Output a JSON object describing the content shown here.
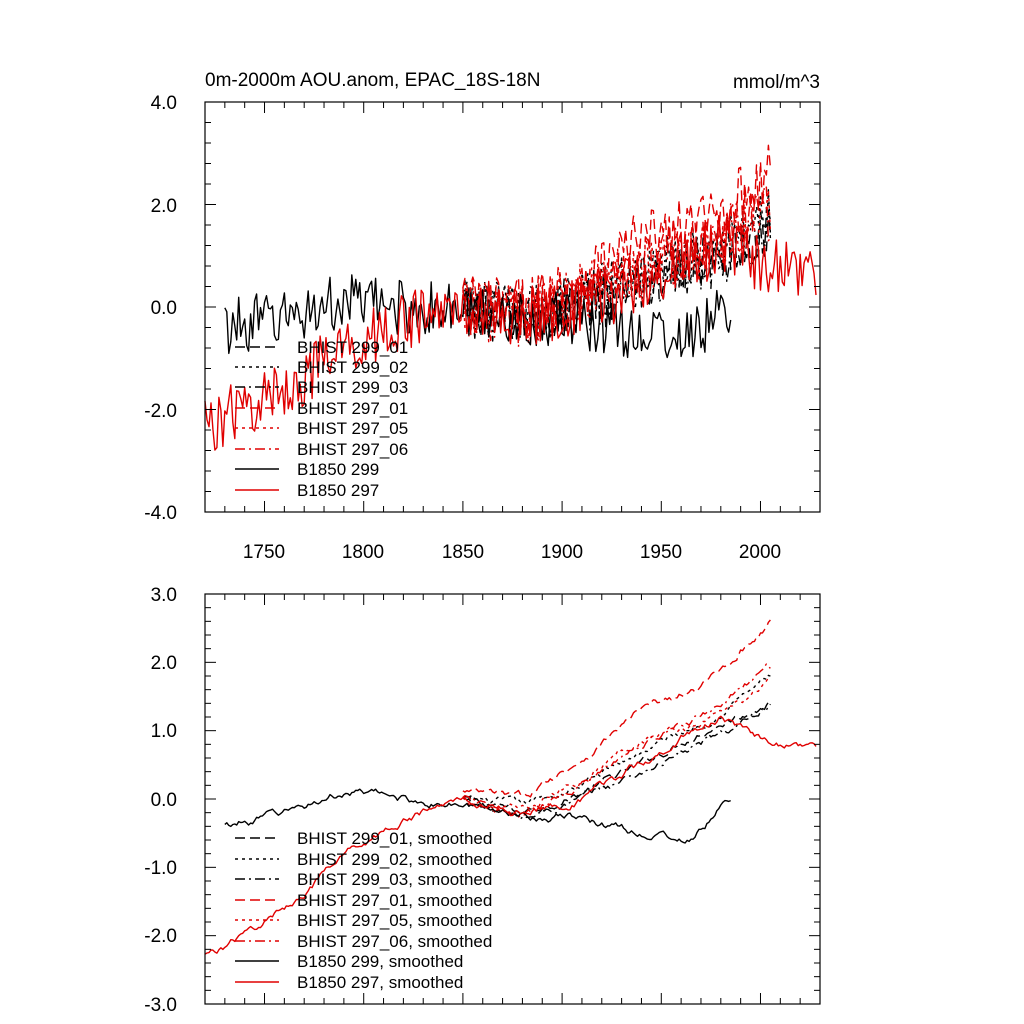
{
  "chart_data": [
    {
      "type": "line",
      "title": "0m-2000m AOU.anom, EPAC_18S-18N",
      "units": "mmol/m^3",
      "xlim": [
        1720,
        2030
      ],
      "ylim": [
        -4.0,
        4.0
      ],
      "xticks": [
        1750,
        1800,
        1850,
        1900,
        1950,
        2000
      ],
      "yticks": [
        -4.0,
        -2.0,
        0.0,
        2.0,
        4.0
      ],
      "xtick_labels": [
        "1750",
        "1800",
        "1850",
        "1900",
        "1950",
        "2000"
      ],
      "ytick_labels": [
        "-4.0",
        "-2.0",
        "0.0",
        "2.0",
        "4.0"
      ],
      "legend_location": "lower-left",
      "series": [
        {
          "name": "BHIST 299_01",
          "color": "#000000",
          "dash": "long-dash",
          "x_range": [
            1850,
            2005
          ],
          "anchors": [
            [
              1850,
              0.0
            ],
            [
              1880,
              -0.2
            ],
            [
              1910,
              0.1
            ],
            [
              1940,
              0.5
            ],
            [
              1970,
              1.0
            ],
            [
              2005,
              1.4
            ]
          ],
          "noise": 0.55
        },
        {
          "name": "BHIST 299_02",
          "color": "#000000",
          "dash": "dot",
          "x_range": [
            1850,
            2005
          ],
          "anchors": [
            [
              1850,
              0.0
            ],
            [
              1880,
              -0.1
            ],
            [
              1910,
              0.2
            ],
            [
              1940,
              0.7
            ],
            [
              1970,
              1.1
            ],
            [
              2005,
              1.8
            ]
          ],
          "noise": 0.55
        },
        {
          "name": "BHIST 299_03",
          "color": "#000000",
          "dash": "dash-dot",
          "x_range": [
            1850,
            2005
          ],
          "anchors": [
            [
              1850,
              0.0
            ],
            [
              1880,
              -0.3
            ],
            [
              1910,
              0.0
            ],
            [
              1940,
              0.4
            ],
            [
              1970,
              0.8
            ],
            [
              2005,
              1.3
            ]
          ],
          "noise": 0.55
        },
        {
          "name": "BHIST 297_01",
          "color": "#e00000",
          "dash": "long-dash",
          "x_range": [
            1850,
            2005
          ],
          "anchors": [
            [
              1850,
              0.1
            ],
            [
              1880,
              0.0
            ],
            [
              1910,
              0.6
            ],
            [
              1940,
              1.3
            ],
            [
              1970,
              1.6
            ],
            [
              2005,
              2.6
            ]
          ],
          "noise": 0.6
        },
        {
          "name": "BHIST 297_05",
          "color": "#e00000",
          "dash": "dot",
          "x_range": [
            1850,
            2005
          ],
          "anchors": [
            [
              1850,
              0.0
            ],
            [
              1880,
              -0.2
            ],
            [
              1910,
              0.3
            ],
            [
              1940,
              0.9
            ],
            [
              1970,
              1.1
            ],
            [
              2005,
              1.7
            ]
          ],
          "noise": 0.6
        },
        {
          "name": "BHIST 297_06",
          "color": "#e00000",
          "dash": "dash-dot",
          "x_range": [
            1850,
            2005
          ],
          "anchors": [
            [
              1850,
              0.0
            ],
            [
              1880,
              -0.3
            ],
            [
              1910,
              0.2
            ],
            [
              1940,
              0.8
            ],
            [
              1970,
              1.2
            ],
            [
              2005,
              1.9
            ]
          ],
          "noise": 0.6
        },
        {
          "name": "B1850 299",
          "color": "#000000",
          "dash": "solid",
          "x_range": [
            1730,
            1985
          ],
          "anchors": [
            [
              1730,
              -0.4
            ],
            [
              1760,
              -0.2
            ],
            [
              1790,
              0.1
            ],
            [
              1820,
              0.0
            ],
            [
              1850,
              -0.1
            ],
            [
              1880,
              -0.2
            ],
            [
              1910,
              -0.3
            ],
            [
              1940,
              -0.5
            ],
            [
              1965,
              -0.6
            ],
            [
              1985,
              0.0
            ]
          ],
          "noise": 0.55
        },
        {
          "name": "B1850 297",
          "color": "#e00000",
          "dash": "solid",
          "x_range": [
            1720,
            2028
          ],
          "anchors": [
            [
              1720,
              -2.3
            ],
            [
              1740,
              -2.0
            ],
            [
              1760,
              -1.6
            ],
            [
              1780,
              -1.1
            ],
            [
              1800,
              -0.6
            ],
            [
              1820,
              -0.3
            ],
            [
              1850,
              0.0
            ],
            [
              1880,
              -0.2
            ],
            [
              1910,
              0.0
            ],
            [
              1940,
              0.5
            ],
            [
              1960,
              0.9
            ],
            [
              1980,
              1.2
            ],
            [
              1995,
              0.9
            ],
            [
              2010,
              0.8
            ],
            [
              2028,
              0.8
            ]
          ],
          "noise": 0.6
        }
      ]
    },
    {
      "type": "line",
      "title": "",
      "units": "",
      "xlim": [
        1720,
        2030
      ],
      "ylim": [
        -3.0,
        3.0
      ],
      "xticks": [
        1750,
        1800,
        1850,
        1900,
        1950,
        2000
      ],
      "yticks": [
        -3.0,
        -2.0,
        -1.0,
        0.0,
        1.0,
        2.0,
        3.0
      ],
      "ytick_labels": [
        "-3.0",
        "-2.0",
        "-1.0",
        "0.0",
        "1.0",
        "2.0",
        "3.0"
      ],
      "legend_location": "lower-left",
      "series": [
        {
          "name": "BHIST 299_01, smoothed",
          "color": "#000000",
          "dash": "long-dash",
          "x_range": [
            1850,
            2005
          ],
          "anchors": [
            [
              1850,
              0.0
            ],
            [
              1880,
              -0.2
            ],
            [
              1910,
              0.1
            ],
            [
              1940,
              0.5
            ],
            [
              1970,
              1.0
            ],
            [
              2005,
              1.4
            ]
          ],
          "noise": 0.08
        },
        {
          "name": "BHIST 299_02, smoothed",
          "color": "#000000",
          "dash": "dot",
          "x_range": [
            1850,
            2005
          ],
          "anchors": [
            [
              1850,
              0.0
            ],
            [
              1880,
              -0.1
            ],
            [
              1910,
              0.2
            ],
            [
              1940,
              0.7
            ],
            [
              1970,
              1.1
            ],
            [
              2005,
              1.8
            ]
          ],
          "noise": 0.08
        },
        {
          "name": "BHIST 299_03, smoothed",
          "color": "#000000",
          "dash": "dash-dot",
          "x_range": [
            1850,
            2005
          ],
          "anchors": [
            [
              1850,
              0.0
            ],
            [
              1880,
              -0.3
            ],
            [
              1910,
              0.0
            ],
            [
              1940,
              0.4
            ],
            [
              1970,
              0.8
            ],
            [
              2005,
              1.3
            ]
          ],
          "noise": 0.08
        },
        {
          "name": "BHIST 297_01, smoothed",
          "color": "#e00000",
          "dash": "long-dash",
          "x_range": [
            1850,
            2005
          ],
          "anchors": [
            [
              1850,
              0.1
            ],
            [
              1880,
              0.0
            ],
            [
              1910,
              0.6
            ],
            [
              1940,
              1.3
            ],
            [
              1970,
              1.6
            ],
            [
              2005,
              2.6
            ]
          ],
          "noise": 0.08
        },
        {
          "name": "BHIST 297_05, smoothed",
          "color": "#e00000",
          "dash": "dot",
          "x_range": [
            1850,
            2005
          ],
          "anchors": [
            [
              1850,
              0.0
            ],
            [
              1880,
              -0.2
            ],
            [
              1910,
              0.3
            ],
            [
              1940,
              0.9
            ],
            [
              1970,
              1.1
            ],
            [
              2005,
              1.7
            ]
          ],
          "noise": 0.08
        },
        {
          "name": "BHIST 297_06, smoothed",
          "color": "#e00000",
          "dash": "dash-dot",
          "x_range": [
            1850,
            2005
          ],
          "anchors": [
            [
              1850,
              0.0
            ],
            [
              1880,
              -0.3
            ],
            [
              1910,
              0.2
            ],
            [
              1940,
              0.8
            ],
            [
              1970,
              1.2
            ],
            [
              2005,
              1.9
            ]
          ],
          "noise": 0.08
        },
        {
          "name": "B1850 299, smoothed",
          "color": "#000000",
          "dash": "solid",
          "x_range": [
            1730,
            1985
          ],
          "anchors": [
            [
              1730,
              -0.4
            ],
            [
              1760,
              -0.2
            ],
            [
              1790,
              0.1
            ],
            [
              1820,
              0.0
            ],
            [
              1850,
              -0.1
            ],
            [
              1880,
              -0.2
            ],
            [
              1910,
              -0.3
            ],
            [
              1940,
              -0.5
            ],
            [
              1965,
              -0.6
            ],
            [
              1985,
              0.0
            ]
          ],
          "noise": 0.08
        },
        {
          "name": "B1850 297, smoothed",
          "color": "#e00000",
          "dash": "solid",
          "x_range": [
            1720,
            2028
          ],
          "anchors": [
            [
              1720,
              -2.3
            ],
            [
              1740,
              -2.0
            ],
            [
              1760,
              -1.6
            ],
            [
              1780,
              -1.1
            ],
            [
              1800,
              -0.6
            ],
            [
              1820,
              -0.3
            ],
            [
              1850,
              0.0
            ],
            [
              1880,
              -0.2
            ],
            [
              1910,
              0.0
            ],
            [
              1940,
              0.5
            ],
            [
              1960,
              0.9
            ],
            [
              1980,
              1.2
            ],
            [
              1995,
              0.9
            ],
            [
              2010,
              0.8
            ],
            [
              2028,
              0.8
            ]
          ],
          "noise": 0.08
        }
      ]
    }
  ]
}
